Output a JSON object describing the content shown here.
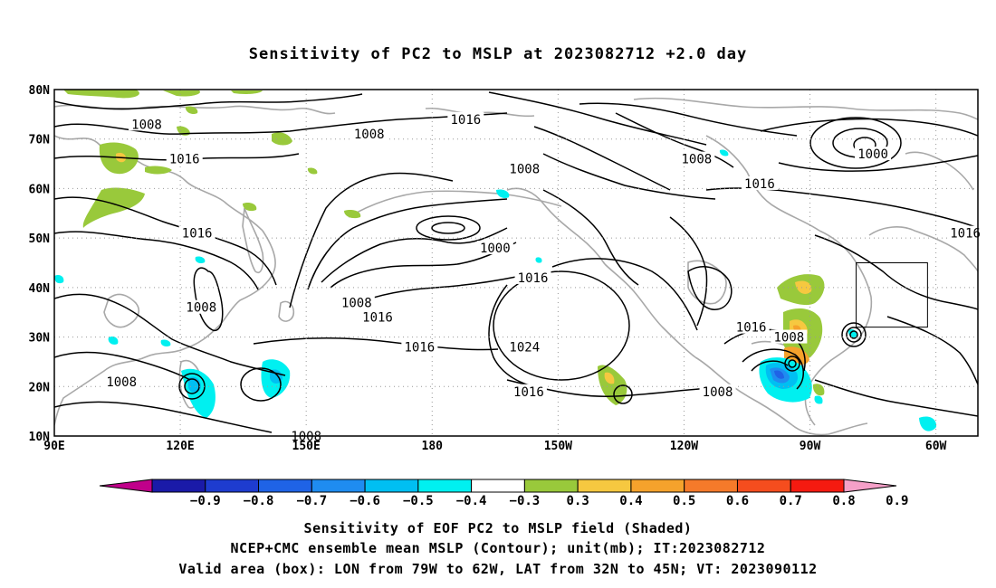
{
  "title": "Sensitivity of PC2 to MSLP at 2023082712 +2.0 day",
  "map": {
    "lon_labels": [
      "90E",
      "120E",
      "150E",
      "180",
      "150W",
      "120W",
      "90W",
      "60W"
    ],
    "lat_labels": [
      "80N",
      "70N",
      "60N",
      "50N",
      "40N",
      "30N",
      "20N",
      "10N"
    ],
    "valid_box": {
      "lon_min": -79,
      "lon_max": -62,
      "lat_min": 32,
      "lat_max": 45
    },
    "contour_labels": [
      {
        "text": "1008",
        "lon": 112,
        "lat": 73
      },
      {
        "text": "1008",
        "lon": 165,
        "lat": 71
      },
      {
        "text": "1016",
        "lon": 188,
        "lat": 74
      },
      {
        "text": "1008",
        "lon": 243,
        "lat": 66
      },
      {
        "text": "1000",
        "lon": 285,
        "lat": 67
      },
      {
        "text": "1016",
        "lon": 121,
        "lat": 66
      },
      {
        "text": "1008",
        "lon": 202,
        "lat": 64
      },
      {
        "text": "1016",
        "lon": 258,
        "lat": 61
      },
      {
        "text": "1016",
        "lon": 124,
        "lat": 51
      },
      {
        "text": "1000",
        "lon": 195,
        "lat": 48
      },
      {
        "text": "1016",
        "lon": 204,
        "lat": 42
      },
      {
        "text": "1016",
        "lon": 307,
        "lat": 51
      },
      {
        "text": "1008",
        "lon": 125,
        "lat": 36
      },
      {
        "text": "1008",
        "lon": 162,
        "lat": 37
      },
      {
        "text": "1016",
        "lon": 167,
        "lat": 34
      },
      {
        "text": "1024",
        "lon": 202,
        "lat": 28
      },
      {
        "text": "1016",
        "lon": 177,
        "lat": 28
      },
      {
        "text": "1016",
        "lon": 256,
        "lat": 32
      },
      {
        "text": "1008",
        "lon": 265,
        "lat": 30
      },
      {
        "text": "1008",
        "lon": 106,
        "lat": 21
      },
      {
        "text": "1016",
        "lon": 203,
        "lat": 19
      },
      {
        "text": "1008",
        "lon": 248,
        "lat": 19
      },
      {
        "text": "1008",
        "lon": 150,
        "lat": 10
      }
    ]
  },
  "colorbar": {
    "colors": [
      "#c0008a",
      "#1a1aa8",
      "#1e3ccf",
      "#1f63e6",
      "#1f8cf0",
      "#00bff2",
      "#00f0f0",
      "#ffffff",
      "#99c93b",
      "#f6c840",
      "#f5a22c",
      "#f57a2a",
      "#f54d1e",
      "#f51a10",
      "#f5a0c8"
    ],
    "labels": [
      "-0.9",
      "-0.8",
      "-0.7",
      "-0.6",
      "-0.5",
      "-0.4",
      "-0.3",
      "0.3",
      "0.4",
      "0.5",
      "0.6",
      "0.7",
      "0.8",
      "0.9"
    ]
  },
  "caption": {
    "line1": "Sensitivity of EOF PC2 to MSLP field (Shaded)",
    "line2": "NCEP+CMC ensemble mean MSLP (Contour); unit(mb); IT:2023082712",
    "line3": "Valid area (box): LON from 79W to 62W, LAT from 32N to 45N; VT: 2023090112"
  }
}
